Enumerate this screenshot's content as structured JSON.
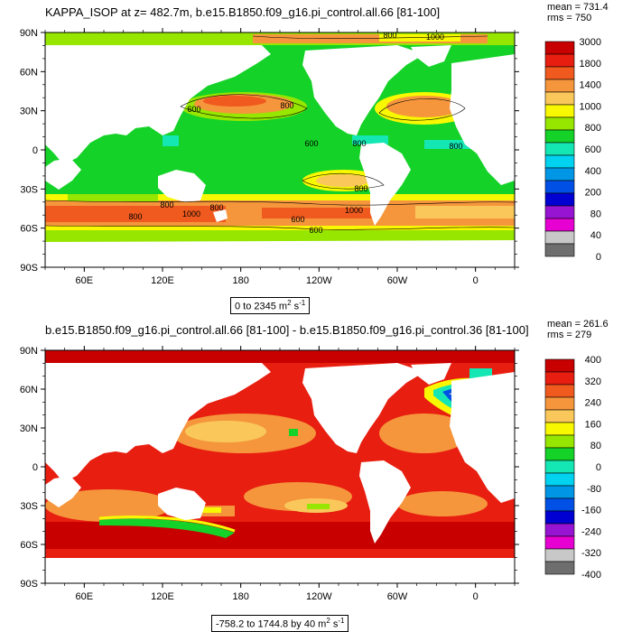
{
  "panels": [
    {
      "title": "KAPPA_ISOP at z= 482.7m, b.e15.B1850.f09_g16.pi_control.all.66 [81-100]",
      "mean": "mean = 731.4",
      "rms": "rms = 750",
      "range_main": "0 to 2345 m",
      "range_exp1": "2",
      "range_mid": " s",
      "range_exp2": "-1",
      "lat_labels": [
        "90N",
        "60N",
        "30N",
        "0",
        "30S",
        "60S",
        "90S"
      ],
      "lon_labels": [
        "60E",
        "120E",
        "180",
        "120W",
        "60W",
        "0"
      ],
      "colorbar_labels": [
        "3000",
        "1800",
        "1400",
        "1000",
        "800",
        "600",
        "400",
        "200",
        "80",
        "40",
        "0"
      ],
      "colorbar_colors": [
        "#c80000",
        "#e81e10",
        "#f05a1e",
        "#f5963c",
        "#fac85a",
        "#f8f800",
        "#96e600",
        "#14d228",
        "#14e6b4",
        "#00d2f0",
        "#0096e6",
        "#0050e6",
        "#0000d2",
        "#9614d2",
        "#e600d2",
        "#c8c8c8",
        "#6e6e6e"
      ],
      "contour_labels": [
        "800",
        "1000",
        "800",
        "600",
        "600",
        "800",
        "800",
        "1000",
        "800",
        "800",
        "1000",
        "800",
        "600",
        "600",
        "800"
      ]
    },
    {
      "title": "b.e15.B1850.f09_g16.pi_control.all.66 [81-100] - b.e15.B1850.f09_g16.pi_control.36 [81-100]",
      "mean": "mean = 261.6",
      "rms": "rms = 279",
      "range_main": "-758.2 to 1744.8 by 40 m",
      "range_exp1": "2",
      "range_mid": " s",
      "range_exp2": "-1",
      "lat_labels": [
        "90N",
        "60N",
        "30N",
        "0",
        "30S",
        "60S",
        "90S"
      ],
      "lon_labels": [
        "60E",
        "120E",
        "180",
        "120W",
        "60W",
        "0"
      ],
      "colorbar_labels": [
        "400",
        "320",
        "240",
        "160",
        "80",
        "0",
        "-80",
        "-160",
        "-240",
        "-320",
        "-400"
      ],
      "colorbar_colors": [
        "#c80000",
        "#e81e10",
        "#f05a1e",
        "#f5963c",
        "#fac85a",
        "#f8f800",
        "#96e600",
        "#14d228",
        "#14e6b4",
        "#00d2f0",
        "#0096e6",
        "#0050e6",
        "#0000d2",
        "#9614d2",
        "#e600d2",
        "#c8c8c8",
        "#6e6e6e"
      ]
    }
  ],
  "colors": {
    "green": "#14d228",
    "lightgreen": "#96e600",
    "yellow": "#f8f800",
    "orange": "#f5963c",
    "darkorange": "#f05a1e",
    "red": "#e81e10",
    "darkred": "#c80000",
    "cyan": "#14e6b4",
    "lightorange": "#fac85a",
    "land": "#ffffff"
  }
}
